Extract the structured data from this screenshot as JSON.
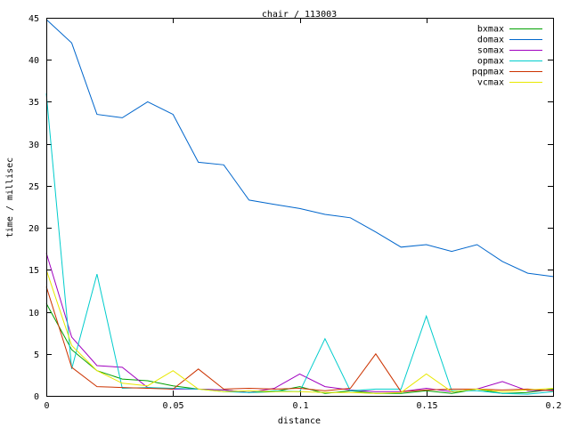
{
  "chart_data": {
    "type": "line",
    "title": "chair / 113003",
    "xlabel": "distance",
    "ylabel": "time / millisec",
    "xlim": [
      0,
      0.2
    ],
    "ylim": [
      0,
      45
    ],
    "grid": false,
    "legend_position": "top-right",
    "x_ticks": [
      0,
      0.05,
      0.1,
      0.15,
      0.2
    ],
    "x_tick_labels": [
      "0",
      "0.05",
      "0.1",
      "0.15",
      "0.2"
    ],
    "y_ticks": [
      0,
      5,
      10,
      15,
      20,
      25,
      30,
      35,
      40,
      45
    ],
    "y_tick_labels": [
      "0",
      "5",
      "10",
      "15",
      "20",
      "25",
      "30",
      "35",
      "40",
      "45"
    ],
    "x": [
      0,
      0.01,
      0.02,
      0.03,
      0.04,
      0.05,
      0.06,
      0.07,
      0.08,
      0.09,
      0.1,
      0.11,
      0.12,
      0.13,
      0.14,
      0.15,
      0.16,
      0.17,
      0.18,
      0.19,
      0.2
    ],
    "series": [
      {
        "name": "bxmax",
        "color": "#00a000",
        "values": [
          11,
          5.5,
          3.0,
          2.0,
          1.8,
          1.2,
          0.8,
          0.7,
          0.4,
          0.5,
          1.1,
          0.3,
          0.6,
          0.3,
          0.3,
          0.6,
          0.3,
          0.8,
          0.3,
          0.4,
          0.8
        ]
      },
      {
        "name": "domax",
        "color": "#0066cc",
        "values": [
          44.8,
          42.0,
          33.5,
          33.1,
          35.0,
          33.5,
          27.8,
          27.5,
          23.3,
          22.8,
          22.3,
          21.6,
          21.2,
          19.5,
          17.7,
          18.0,
          17.2,
          18.0,
          16.0,
          14.6,
          14.2
        ]
      },
      {
        "name": "somax",
        "color": "#a000c0",
        "values": [
          17,
          7.0,
          3.6,
          3.4,
          1.0,
          0.8,
          0.8,
          0.7,
          0.4,
          0.9,
          2.6,
          1.1,
          0.7,
          0.5,
          0.5,
          0.9,
          0.5,
          0.8,
          1.7,
          0.6,
          0.7
        ]
      },
      {
        "name": "opmax",
        "color": "#00cccc",
        "values": [
          36,
          3.2,
          14.5,
          0.9,
          1.0,
          0.9,
          0.8,
          0.5,
          0.4,
          0.6,
          0.5,
          6.8,
          0.6,
          0.8,
          0.8,
          9.5,
          0.6,
          0.6,
          0.3,
          0.2,
          0.5
        ]
      },
      {
        "name": "pqpmax",
        "color": "#cc3300",
        "values": [
          13,
          3.4,
          1.1,
          1.0,
          0.9,
          0.8,
          3.2,
          0.8,
          0.9,
          0.8,
          0.9,
          0.6,
          0.9,
          5.0,
          0.5,
          0.7,
          0.8,
          0.8,
          0.7,
          0.8,
          0.6
        ]
      },
      {
        "name": "vcmax",
        "color": "#e8e800",
        "values": [
          15,
          6.0,
          3.0,
          1.5,
          1.2,
          3.0,
          0.8,
          0.5,
          0.6,
          0.5,
          0.5,
          0.4,
          0.4,
          0.3,
          0.4,
          2.6,
          0.5,
          0.8,
          0.5,
          0.7,
          0.9
        ]
      }
    ]
  }
}
